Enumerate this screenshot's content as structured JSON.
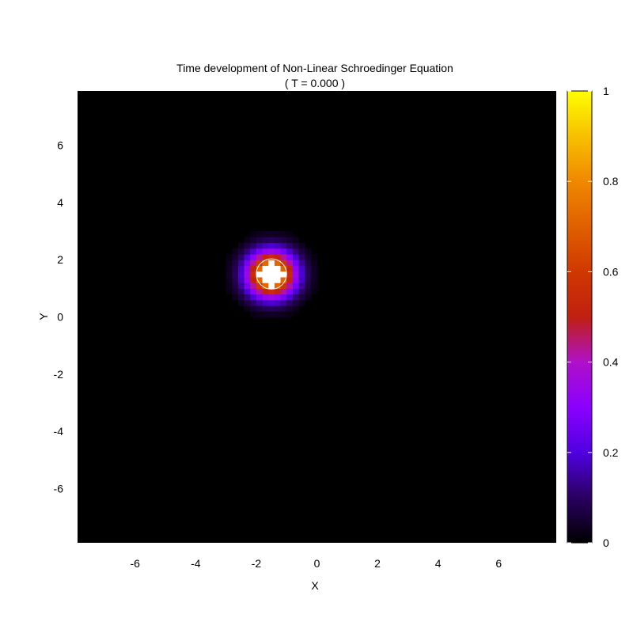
{
  "chart_data": {
    "type": "heatmap",
    "title": "Time development of Non-Linear Schroedinger Equation",
    "subtitle": "( T = 0.000 )",
    "xlabel": "X",
    "ylabel": "Y",
    "xlim": [
      -7.9,
      7.9
    ],
    "ylim": [
      -7.9,
      7.9
    ],
    "xticks": [
      -6,
      -4,
      -2,
      0,
      2,
      4,
      6
    ],
    "yticks": [
      -6,
      -4,
      -2,
      0,
      2,
      4,
      6
    ],
    "colorbar": {
      "range": [
        0,
        1
      ],
      "ticks": [
        0,
        0.2,
        0.4,
        0.6,
        0.8,
        1
      ],
      "palette": [
        {
          "v": 0.0,
          "color": "#000000"
        },
        {
          "v": 0.1,
          "color": "#2a0060"
        },
        {
          "v": 0.2,
          "color": "#5000e0"
        },
        {
          "v": 0.3,
          "color": "#8a00ff"
        },
        {
          "v": 0.4,
          "color": "#b010c8"
        },
        {
          "v": 0.5,
          "color": "#c02010"
        },
        {
          "v": 0.6,
          "color": "#d03800"
        },
        {
          "v": 0.7,
          "color": "#e06000"
        },
        {
          "v": 0.8,
          "color": "#f08800"
        },
        {
          "v": 0.9,
          "color": "#f8c000"
        },
        {
          "v": 1.0,
          "color": "#ffff00"
        }
      ]
    },
    "peak": {
      "x": -1.5,
      "y": 1.5,
      "sigma": 0.55,
      "amplitude": 1.0,
      "saturation_color": "#ffffff"
    },
    "contour": {
      "x": -1.5,
      "y": 1.5,
      "radius": 0.5,
      "color": "#ffffff"
    },
    "grid": false,
    "legend": "colorbar-right"
  }
}
